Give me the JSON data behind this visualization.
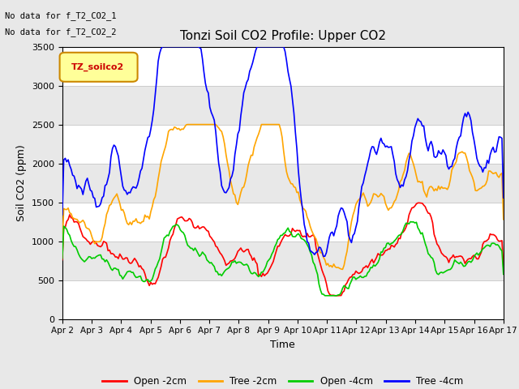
{
  "title": "Tonzi Soil CO2 Profile: Upper CO2",
  "ylabel": "Soil CO2 (ppm)",
  "xlabel": "Time",
  "ylim": [
    0,
    3500
  ],
  "no_data_text_1": "No data for f_T2_CO2_1",
  "no_data_text_2": "No data for f_T2_CO2_2",
  "legend_label": "TZ_soilco2",
  "line_labels": [
    "Open -2cm",
    "Tree -2cm",
    "Open -4cm",
    "Tree -4cm"
  ],
  "line_colors": [
    "#ff0000",
    "#ffa500",
    "#00cc00",
    "#0000ff"
  ],
  "background_color": "#e8e8e8",
  "plot_bg_color": "#ffffff",
  "tick_dates": [
    "Apr 2",
    "Apr 3",
    "Apr 4",
    "Apr 5",
    "Apr 6",
    "Apr 7",
    "Apr 8",
    "Apr 9",
    "Apr 10",
    "Apr 11",
    "Apr 12",
    "Apr 13",
    "Apr 14",
    "Apr 15",
    "Apr 16",
    "Apr 17"
  ],
  "figsize": [
    6.4,
    4.8
  ],
  "dpi": 100
}
